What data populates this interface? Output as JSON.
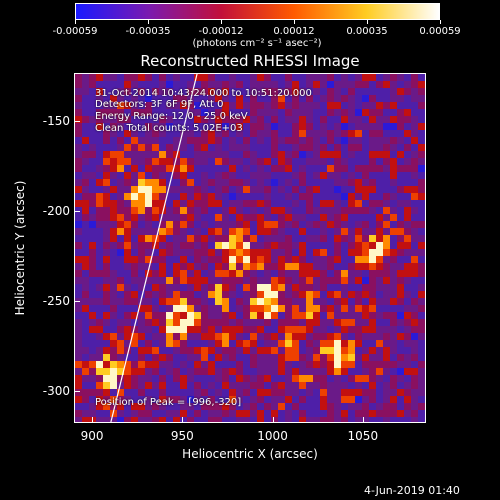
{
  "colorbar": {
    "ticks": [
      "-0.00059",
      "-0.00035",
      "-0.00012",
      "0.00012",
      "0.00035",
      "0.00059"
    ],
    "units": "(photons cm⁻² s⁻¹ asec⁻²)",
    "colors": [
      "#1a1aff",
      "#7a1ab0",
      "#c2103a",
      "#ff5a00",
      "#ffcc22",
      "#ffffff"
    ]
  },
  "title": "Reconstructed RHESSI Image",
  "info": {
    "time": "31-Oct-2014 10:43:24.000 to 10:51:20.000",
    "detectors": "Detectors: 3F 6F 9F, Att 0",
    "energy": "Energy Range: 12.0 - 25.0 keV",
    "clean": "Clean    Total counts: 5.02E+03",
    "peak": "Position of Peak = [996,-320]"
  },
  "axes": {
    "xlabel": "Heliocentric X (arcsec)",
    "ylabel": "Heliocentric Y (arcsec)",
    "xrange": [
      890,
      1085
    ],
    "yrange": [
      -318,
      -123
    ],
    "xticks": [
      "900",
      "950",
      "1000",
      "1050"
    ],
    "yticks": [
      "-150",
      "-200",
      "-250",
      "-300"
    ]
  },
  "chart_data": {
    "type": "heatmap",
    "title": "Reconstructed RHESSI Image",
    "xlabel": "Heliocentric X (arcsec)",
    "ylabel": "Heliocentric Y (arcsec)",
    "xlim": [
      890,
      1085
    ],
    "ylim": [
      -318,
      -123
    ],
    "colorbar_range": [
      -0.00059,
      0.00059
    ],
    "limb_line": [
      [
        910,
        -318
      ],
      [
        958,
        -123
      ]
    ]
  },
  "timestamp": "4-Jun-2019 01:40"
}
